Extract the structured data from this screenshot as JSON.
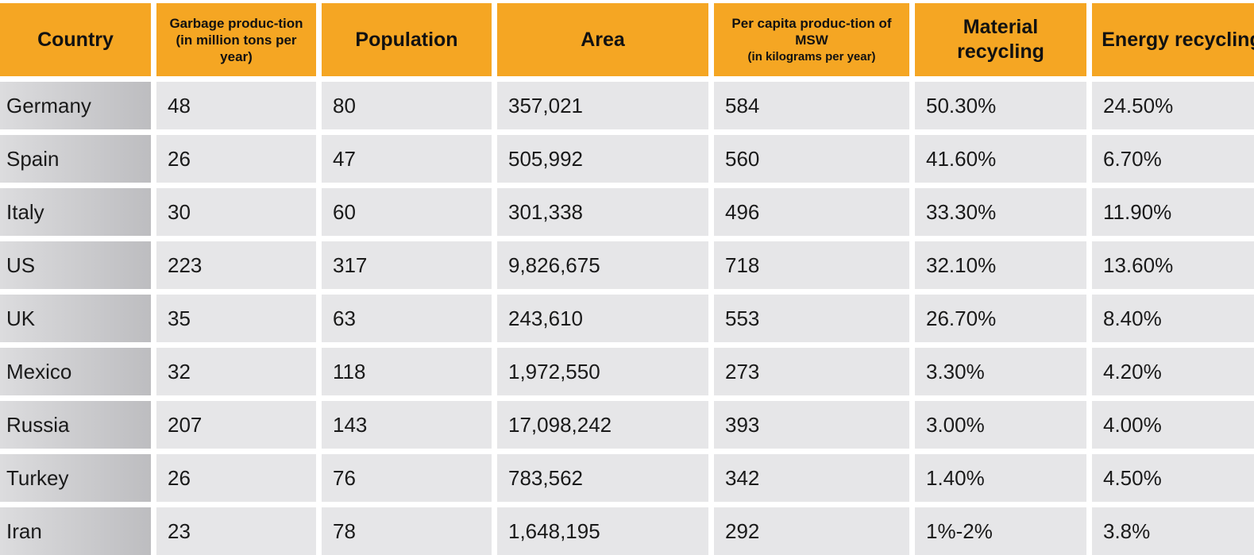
{
  "chart_data": {
    "type": "table",
    "columns": [
      {
        "key": "country",
        "label": "Country"
      },
      {
        "key": "garbage",
        "label": "Garbage produc-tion (in million tons per year)"
      },
      {
        "key": "population",
        "label": "Population"
      },
      {
        "key": "area",
        "label": "Area"
      },
      {
        "key": "per_capita",
        "label": "Per capita produc-tion of MSW",
        "sublabel": "(in kilograms per year)"
      },
      {
        "key": "material",
        "label": "Material recycling"
      },
      {
        "key": "energy",
        "label": "Energy recycling"
      }
    ],
    "rows": [
      {
        "country": "Germany",
        "garbage": "48",
        "population": "80",
        "area": "357,021",
        "per_capita": "584",
        "material": "50.30%",
        "energy": "24.50%"
      },
      {
        "country": "Spain",
        "garbage": "26",
        "population": "47",
        "area": "505,992",
        "per_capita": "560",
        "material": "41.60%",
        "energy": "6.70%"
      },
      {
        "country": "Italy",
        "garbage": "30",
        "population": "60",
        "area": "301,338",
        "per_capita": "496",
        "material": "33.30%",
        "energy": "11.90%"
      },
      {
        "country": "US",
        "garbage": "223",
        "population": "317",
        "area": "9,826,675",
        "per_capita": "718",
        "material": "32.10%",
        "energy": "13.60%"
      },
      {
        "country": "UK",
        "garbage": "35",
        "population": "63",
        "area": "243,610",
        "per_capita": "553",
        "material": "26.70%",
        "energy": "8.40%"
      },
      {
        "country": "Mexico",
        "garbage": "32",
        "population": "118",
        "area": "1,972,550",
        "per_capita": "273",
        "material": "3.30%",
        "energy": "4.20%"
      },
      {
        "country": "Russia",
        "garbage": "207",
        "population": "143",
        "area": "17,098,242",
        "per_capita": "393",
        "material": "3.00%",
        "energy": "4.00%"
      },
      {
        "country": "Turkey",
        "garbage": "26",
        "population": "76",
        "area": "783,562",
        "per_capita": "342",
        "material": "1.40%",
        "energy": "4.50%"
      },
      {
        "country": "Iran",
        "garbage": "23",
        "population": "78",
        "area": "1,648,195",
        "per_capita": "292",
        "material": "1%-2%",
        "energy": "3.8%"
      }
    ]
  },
  "colors": {
    "header_bg": "#f5a623",
    "cell_bg": "#e6e6e8",
    "country_cell_bg": "#bdbdc0"
  }
}
